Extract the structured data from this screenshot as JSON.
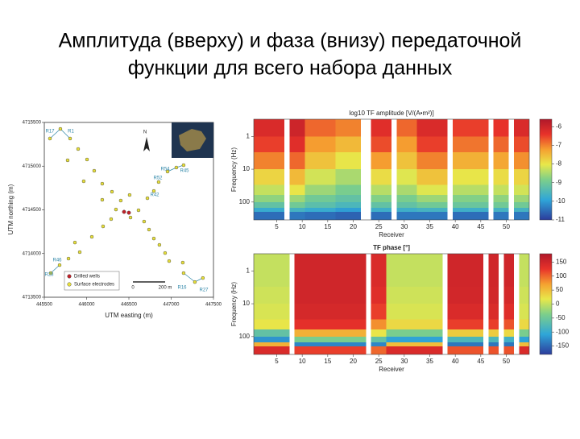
{
  "title_lines": [
    "Амплитуда (вверху) и фаза (внизу) передаточной",
    "функции для всего набора данных"
  ],
  "map": {
    "xlabel": "UTM easting (m)",
    "ylabel": "UTM northing (m)",
    "xlim": [
      445500,
      447500
    ],
    "ylim": [
      4713500,
      4715500
    ],
    "xticks": [
      445500,
      446000,
      446500,
      447000,
      447500
    ],
    "yticks": [
      4713500,
      4714000,
      4714500,
      4715000,
      4715500
    ],
    "north": "N",
    "legend": [
      "Drilled wells",
      "Surface electrodes"
    ],
    "scale_labels": [
      "0",
      "200 m"
    ],
    "station_labels": [
      "R17",
      "R1",
      "R54",
      "R45",
      "R52",
      "R42",
      "R46",
      "R28",
      "R16",
      "R27"
    ],
    "electrode_color": "#e8e03a",
    "well_color": "#c0222a",
    "electrodes": {
      "x": [
        445567,
        445690,
        445805,
        445900,
        445776,
        446005,
        445966,
        446090,
        446185,
        446300,
        446185,
        446404,
        446509,
        446347,
        446290,
        446195,
        446062,
        445919,
        445862,
        445786,
        445681,
        445576,
        446719,
        446795,
        446852,
        446957,
        447061,
        447147,
        446614,
        446680,
        446738,
        446795,
        446861,
        446928,
        446976,
        447137,
        447147,
        447280,
        447375,
        446519
      ],
      "y": [
        4715316,
        4715426,
        4715316,
        4715196,
        4715067,
        4715076,
        4714827,
        4714947,
        4714799,
        4714707,
        4714615,
        4714606,
        4714670,
        4714504,
        4714394,
        4714311,
        4714191,
        4714016,
        4714126,
        4713942,
        4713868,
        4713776,
        4714633,
        4714716,
        4714818,
        4714938,
        4714984,
        4715011,
        4714495,
        4714366,
        4714274,
        4714172,
        4714099,
        4714006,
        4713914,
        4713896,
        4713776,
        4713674,
        4713720,
        4714412
      ]
    },
    "wells": {
      "x": [
        446443,
        446500
      ],
      "y": [
        4714477,
        4714467
      ]
    }
  },
  "heatmaps": [
    {
      "title": "log10 TF amplitude [V/(A•m²)]",
      "xlabel": "Receiver",
      "ylabel": "Frequency (Hz)",
      "xlim": [
        0.5,
        54.5
      ],
      "xticks": [
        5,
        10,
        15,
        20,
        25,
        30,
        35,
        40,
        45,
        50
      ],
      "ylim": [
        0.3,
        350
      ],
      "yticks": [
        1,
        10,
        100
      ],
      "log_y": true,
      "freq_edges": [
        0.3,
        1,
        3,
        10,
        30,
        60,
        100,
        150,
        200,
        350
      ],
      "clim": [
        -11,
        -5.6
      ],
      "cticks": [
        -6,
        -7,
        -8,
        -9,
        -10,
        -11
      ],
      "columns": [
        {
          "receivers": [
            1,
            6
          ],
          "values": [
            -6.2,
            -6.5,
            -7.0,
            -7.8,
            -8.3,
            -8.7,
            -9.2,
            -9.8,
            -10.5
          ]
        },
        {
          "receivers": [
            8,
            10
          ],
          "values": [
            -6.0,
            -6.3,
            -6.8,
            -7.5,
            -8.0,
            -8.6,
            -9.0,
            -9.6,
            -10.4
          ]
        },
        {
          "receivers": [
            11,
            16
          ],
          "values": [
            -6.8,
            -7.2,
            -7.6,
            -8.2,
            -8.6,
            -9.0,
            -9.3,
            -9.8,
            -10.5
          ]
        },
        {
          "receivers": [
            17,
            21
          ],
          "values": [
            -7.0,
            -7.5,
            -8.0,
            -8.5,
            -8.9,
            -9.2,
            -9.5,
            -10.0,
            -10.6
          ]
        },
        {
          "receivers": [
            24,
            27
          ],
          "values": [
            -6.3,
            -6.6,
            -7.2,
            -7.9,
            -8.4,
            -8.8,
            -9.2,
            -9.7,
            -10.5
          ]
        },
        {
          "receivers": [
            29,
            32
          ],
          "values": [
            -6.8,
            -7.2,
            -7.6,
            -8.1,
            -8.5,
            -8.9,
            -9.2,
            -9.7,
            -10.4
          ]
        },
        {
          "receivers": [
            33,
            38
          ],
          "values": [
            -6.2,
            -6.5,
            -7.0,
            -7.6,
            -8.1,
            -8.6,
            -9.0,
            -9.6,
            -10.4
          ]
        },
        {
          "receivers": [
            40,
            46
          ],
          "values": [
            -6.5,
            -6.9,
            -7.4,
            -8.0,
            -8.4,
            -8.8,
            -9.1,
            -9.7,
            -10.5
          ]
        },
        {
          "receivers": [
            48,
            50
          ],
          "values": [
            -6.4,
            -6.8,
            -7.3,
            -7.9,
            -8.3,
            -8.7,
            -9.0,
            -9.6,
            -10.4
          ]
        },
        {
          "receivers": [
            52,
            54
          ],
          "values": [
            -6.2,
            -6.6,
            -7.1,
            -7.8,
            -8.2,
            -8.6,
            -9.0,
            -9.6,
            -10.4
          ]
        }
      ]
    },
    {
      "title": "TF phase [°]",
      "xlabel": "Receiver",
      "ylabel": "Frequency (Hz)",
      "xlim": [
        0.5,
        54.5
      ],
      "xticks": [
        5,
        10,
        15,
        20,
        25,
        30,
        35,
        40,
        45,
        50
      ],
      "ylim": [
        0.3,
        350
      ],
      "yticks": [
        1,
        10,
        100
      ],
      "log_y": true,
      "freq_edges": [
        0.3,
        1,
        3,
        10,
        30,
        60,
        100,
        150,
        200,
        350
      ],
      "clim": [
        -180,
        180
      ],
      "cticks": [
        150,
        100,
        50,
        0,
        -50,
        -100,
        -150
      ],
      "columns": [
        {
          "receivers": [
            1,
            7
          ],
          "values": [
            0,
            0,
            5,
            10,
            20,
            -60,
            -120,
            60,
            140
          ]
        },
        {
          "receivers": [
            9,
            22
          ],
          "values": [
            150,
            150,
            150,
            145,
            130,
            60,
            -40,
            -130,
            120
          ]
        },
        {
          "receivers": [
            24,
            26
          ],
          "values": [
            140,
            140,
            135,
            120,
            80,
            20,
            -60,
            -130,
            100
          ]
        },
        {
          "receivers": [
            27,
            37
          ],
          "values": [
            0,
            0,
            5,
            10,
            30,
            -40,
            -110,
            50,
            140
          ]
        },
        {
          "receivers": [
            39,
            45
          ],
          "values": [
            150,
            150,
            148,
            140,
            120,
            40,
            -80,
            -140,
            110
          ]
        },
        {
          "receivers": [
            47,
            48
          ],
          "values": [
            150,
            150,
            148,
            140,
            120,
            40,
            -80,
            -140,
            110
          ]
        },
        {
          "receivers": [
            50,
            51
          ],
          "values": [
            150,
            150,
            145,
            135,
            110,
            30,
            -90,
            -140,
            110
          ]
        },
        {
          "receivers": [
            53,
            54
          ],
          "values": [
            0,
            0,
            5,
            10,
            30,
            -40,
            -110,
            50,
            140
          ]
        }
      ]
    }
  ]
}
